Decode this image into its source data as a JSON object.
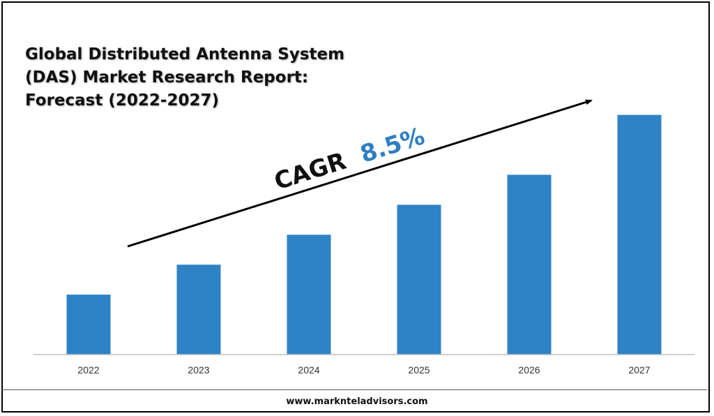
{
  "title_lines": [
    "Global Distributed Antenna System",
    "(DAS) Market Research Report:",
    "Forecast (2022-2027)"
  ],
  "cagr": {
    "label": "CAGR",
    "value": "8.5%",
    "value_color": "#2E7FC4"
  },
  "footer": {
    "website": "www.marknteladvisors.com"
  },
  "colors": {
    "bar": "#2E83C6",
    "axis": "#BFBFBF",
    "tick_label": "#333333",
    "arrow": "#000000"
  },
  "chart_data": {
    "type": "bar",
    "categories": [
      "2022",
      "2023",
      "2024",
      "2025",
      "2026",
      "2027"
    ],
    "values": [
      1.0,
      1.5,
      2.0,
      2.5,
      3.0,
      4.0
    ],
    "ylim": [
      0,
      4.1
    ],
    "grid": false,
    "legend": "none",
    "title": "Global Distributed Antenna System (DAS) Market Research Report: Forecast (2022-2027)"
  }
}
